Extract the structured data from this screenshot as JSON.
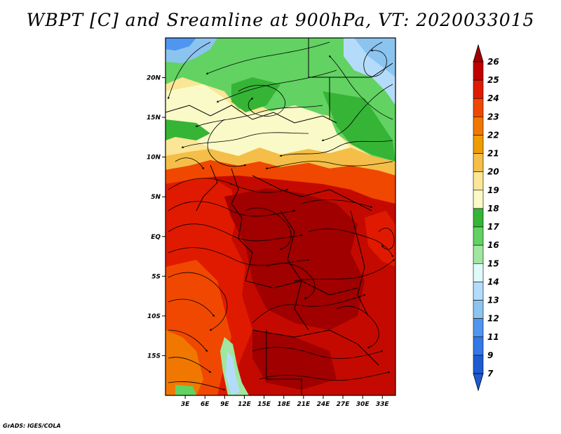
{
  "title": "WBPT [C] and Sreamline at 900hPa, VT: 2020033015",
  "credit": "GrADS: IGES/COLA",
  "map": {
    "lon_range": [
      0,
      35
    ],
    "lat_range": [
      -20,
      25
    ],
    "lat_ticks": [
      {
        "lat": 20,
        "label": "20N"
      },
      {
        "lat": 15,
        "label": "15N"
      },
      {
        "lat": 10,
        "label": "10N"
      },
      {
        "lat": 5,
        "label": "5N"
      },
      {
        "lat": 0,
        "label": "EQ"
      },
      {
        "lat": -5,
        "label": "5S"
      },
      {
        "lat": -10,
        "label": "10S"
      },
      {
        "lat": -15,
        "label": "15S"
      }
    ],
    "lon_ticks": [
      {
        "lon": 3,
        "label": "3E"
      },
      {
        "lon": 6,
        "label": "6E"
      },
      {
        "lon": 9,
        "label": "9E"
      },
      {
        "lon": 12,
        "label": "12E"
      },
      {
        "lon": 15,
        "label": "15E"
      },
      {
        "lon": 18,
        "label": "18E"
      },
      {
        "lon": 21,
        "label": "21E"
      },
      {
        "lon": 24,
        "label": "24E"
      },
      {
        "lon": 27,
        "label": "27E"
      },
      {
        "lon": 30,
        "label": "30E"
      },
      {
        "lon": 33,
        "label": "33E"
      }
    ]
  },
  "colorbar": {
    "levels": [
      {
        "label": "26",
        "color": "#a00000"
      },
      {
        "label": "25",
        "color": "#c00000"
      },
      {
        "label": "24",
        "color": "#e01a00"
      },
      {
        "label": "23",
        "color": "#f04800"
      },
      {
        "label": "22",
        "color": "#f07800"
      },
      {
        "label": "21",
        "color": "#f09c00"
      },
      {
        "label": "20",
        "color": "#f4be48"
      },
      {
        "label": "19",
        "color": "#fae696"
      },
      {
        "label": "18",
        "color": "#fafac8"
      },
      {
        "label": "17",
        "color": "#36b436"
      },
      {
        "label": "16",
        "color": "#62d262"
      },
      {
        "label": "15",
        "color": "#a0e6a0"
      },
      {
        "label": "14",
        "color": "#e0fafa"
      },
      {
        "label": "13",
        "color": "#b4dcfa"
      },
      {
        "label": "12",
        "color": "#8cc4f0"
      },
      {
        "label": "11",
        "color": "#5096f0"
      },
      {
        "label": "9",
        "color": "#3278e6"
      },
      {
        "label": "7",
        "color": "#1e5ad2"
      }
    ],
    "bottom_color": "#1e5ad2",
    "top_color": "#a00000"
  }
}
